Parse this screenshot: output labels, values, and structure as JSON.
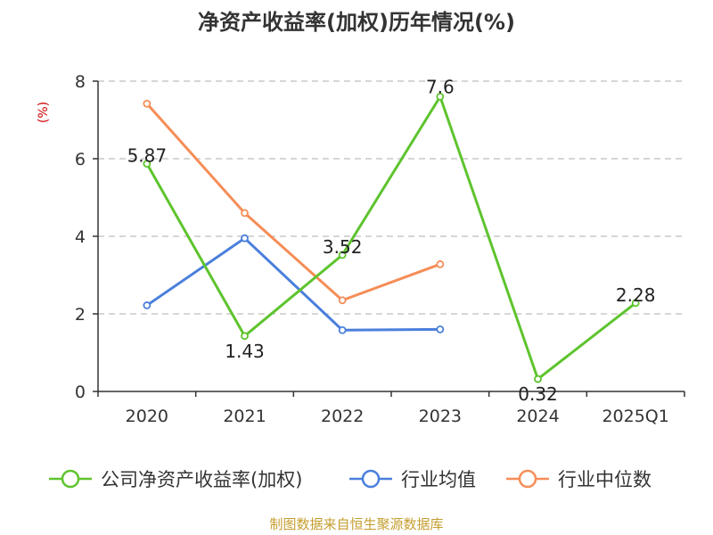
{
  "chart_data": {
    "type": "line",
    "title": "净资产收益率(加权)历年情况(%)",
    "ylabel": "(%)",
    "xlabel": "",
    "categories": [
      "2020",
      "2021",
      "2022",
      "2023",
      "2024",
      "2025Q1"
    ],
    "ylim": [
      0,
      8
    ],
    "yticks": [
      0,
      2,
      4,
      6,
      8
    ],
    "grid": true,
    "legend_position": "bottom",
    "series": [
      {
        "name": "公司净资产收益率(加权)",
        "color": "#5ec42e",
        "values": [
          5.87,
          1.43,
          3.52,
          7.6,
          0.32,
          2.28
        ],
        "data_labels": [
          "5.87",
          "1.43",
          "3.52",
          "7.6",
          "0.32",
          "2.28"
        ]
      },
      {
        "name": "行业均值",
        "color": "#4a7fdc",
        "values": [
          2.22,
          3.95,
          1.58,
          1.6,
          null,
          null
        ]
      },
      {
        "name": "行业中位数",
        "color": "#f58d57",
        "values": [
          7.42,
          4.6,
          2.35,
          3.28,
          null,
          null
        ]
      }
    ]
  },
  "ylabel_color": "#cc0000",
  "source": "制图数据来自恒生聚源数据库",
  "source_color": "#c59e2f"
}
